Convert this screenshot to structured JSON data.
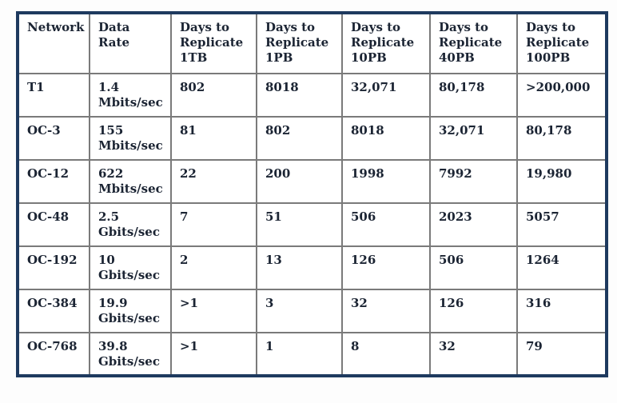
{
  "colors": {
    "border_outer": "#1e3a5f",
    "border_inner": "#7a7a7a",
    "text": "#1b2433",
    "page_bg": "#fdfdfd",
    "cell_bg": "#ffffff"
  },
  "table": {
    "headers": [
      "Network",
      "Data Rate",
      "Days to Replicate 1TB",
      "Days to Replicate 1PB",
      "Days to Replicate 10PB",
      "Days to Replicate 40PB",
      "Days to Replicate 100PB"
    ],
    "rows": [
      {
        "network": "T1",
        "data_rate": {
          "value": "1.4",
          "unit": "Mbits/sec"
        },
        "days_1tb": "802",
        "days_1pb": "8018",
        "days_10pb": "32,071",
        "days_40pb": "80,178",
        "days_100pb": ">200,000"
      },
      {
        "network": "OC-3",
        "data_rate": {
          "value": "155",
          "unit": "Mbits/sec"
        },
        "days_1tb": "81",
        "days_1pb": "802",
        "days_10pb": "8018",
        "days_40pb": "32,071",
        "days_100pb": "80,178"
      },
      {
        "network": "OC-12",
        "data_rate": {
          "value": "622",
          "unit": "Mbits/sec"
        },
        "days_1tb": "22",
        "days_1pb": "200",
        "days_10pb": "1998",
        "days_40pb": "7992",
        "days_100pb": "19,980"
      },
      {
        "network": "OC-48",
        "data_rate": {
          "value": "2.5",
          "unit": "Gbits/sec"
        },
        "days_1tb": "7",
        "days_1pb": "51",
        "days_10pb": "506",
        "days_40pb": "2023",
        "days_100pb": "5057"
      },
      {
        "network": "OC-192",
        "data_rate": {
          "value": "10",
          "unit": "Gbits/sec"
        },
        "days_1tb": "2",
        "days_1pb": "13",
        "days_10pb": "126",
        "days_40pb": "506",
        "days_100pb": "1264"
      },
      {
        "network": "OC-384",
        "data_rate": {
          "value": "19.9",
          "unit": "Gbits/sec"
        },
        "days_1tb": ">1",
        "days_1pb": "3",
        "days_10pb": "32",
        "days_40pb": "126",
        "days_100pb": "316"
      },
      {
        "network": "OC-768",
        "data_rate": {
          "value": "39.8",
          "unit": "Gbits/sec"
        },
        "days_1tb": ">1",
        "days_1pb": "1",
        "days_10pb": "8",
        "days_40pb": "32",
        "days_100pb": "79"
      }
    ]
  }
}
